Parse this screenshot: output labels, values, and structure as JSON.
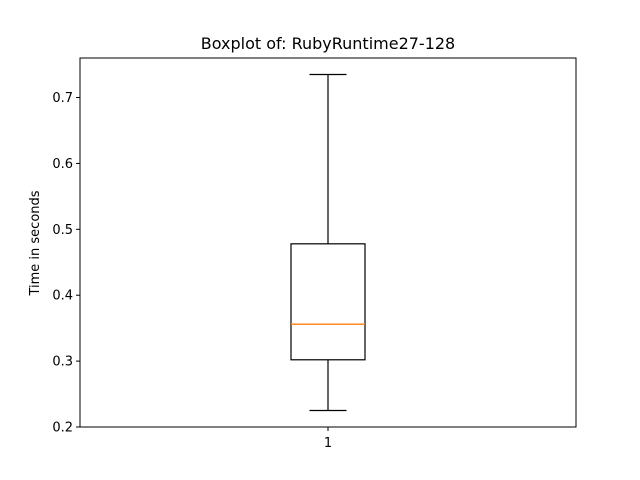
{
  "chart_data": {
    "type": "box",
    "title": "Boxplot of: RubyRuntime27-128",
    "xlabel": "",
    "ylabel": "Time in seconds",
    "categories": [
      "1"
    ],
    "ylim": [
      0.2,
      0.76
    ],
    "yticks": [
      0.2,
      0.3,
      0.4,
      0.5,
      0.6,
      0.7
    ],
    "ytick_labels": [
      "0.2",
      "0.3",
      "0.4",
      "0.5",
      "0.6",
      "0.7"
    ],
    "boxes": [
      {
        "category": "1",
        "whisker_low": 0.225,
        "q1": 0.302,
        "median": 0.356,
        "q3": 0.478,
        "whisker_high": 0.735
      }
    ],
    "grid": false,
    "colors": {
      "box": "#000000",
      "median": "#ff7f0e",
      "axes": "#000000"
    }
  }
}
